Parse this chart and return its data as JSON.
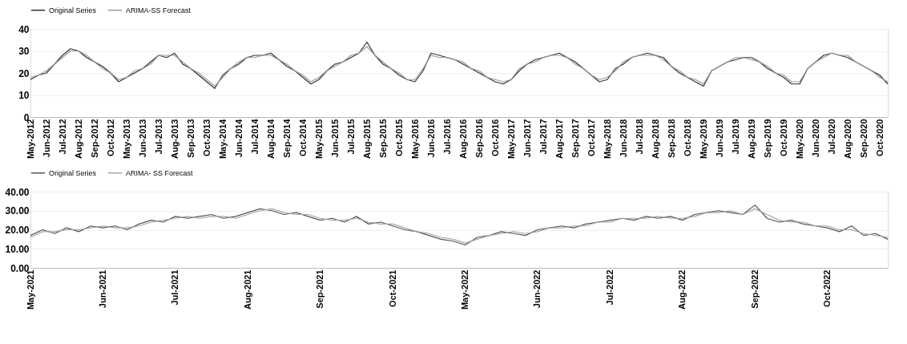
{
  "chart_data": [
    {
      "type": "line",
      "legend": "top",
      "grid": "y",
      "line_style": "solid",
      "categories": [
        "May-2012",
        null,
        "Jun-2012",
        null,
        "Jul-2012",
        null,
        "Aug-2012",
        null,
        "Sep-2012",
        null,
        "Oct-2012",
        null,
        "May-2013",
        null,
        "Jun-2013",
        null,
        "Jul-2013",
        null,
        "Aug-2013",
        null,
        "Sep-2013",
        null,
        "Oct-2013",
        null,
        "May-2014",
        null,
        "Jun-2014",
        null,
        "Jul-2014",
        null,
        "Aug-2014",
        null,
        "Sep-2014",
        null,
        "Oct-2014",
        null,
        "May-2015",
        null,
        "Jun-2015",
        null,
        "Jul-2015",
        null,
        "Aug-2015",
        null,
        "Sep-2015",
        null,
        "Oct-2015",
        null,
        "May-2016",
        null,
        "Jun-2016",
        null,
        "Jul-2016",
        null,
        "Aug-2016",
        null,
        "Sep-2016",
        null,
        "Oct-2016",
        null,
        "May-2017",
        null,
        "Jun-2017",
        null,
        "Jul-2017",
        null,
        "Aug-2017",
        null,
        "Sep-2017",
        null,
        "Oct-2017",
        null,
        "May-2018",
        null,
        "Jun-2018",
        null,
        "Jul-2018",
        null,
        "Aug-2018",
        null,
        "Sep-2018",
        null,
        "Oct-2018",
        null,
        "May-2019",
        null,
        "Jun-2019",
        null,
        "Jul-2019",
        null,
        "Aug-2019",
        null,
        "Sep-2019",
        null,
        "Oct-2019",
        null,
        "May-2020",
        null,
        "Jun-2020",
        null,
        "Jul-2020",
        null,
        "Aug-2020",
        null,
        "Sep-2020",
        null,
        "Oct-2020",
        null
      ],
      "ylim": [
        0,
        40
      ],
      "yticks": [
        0,
        10,
        20,
        30,
        40
      ],
      "series": [
        {
          "name": "Original Series",
          "color": "#333333",
          "values": [
            17,
            19,
            20,
            24,
            28,
            31,
            30,
            27,
            25,
            23,
            20,
            16,
            18,
            20,
            22,
            25,
            28,
            27,
            29,
            24,
            22,
            19,
            16,
            13,
            19,
            22,
            24,
            27,
            28,
            28,
            29,
            26,
            23,
            21,
            18,
            15,
            17,
            21,
            24,
            25,
            27,
            29,
            34,
            28,
            24,
            22,
            19,
            17,
            16,
            21,
            29,
            28,
            27,
            26,
            24,
            22,
            20,
            18,
            16,
            15,
            17,
            21,
            24,
            26,
            27,
            28,
            29,
            27,
            25,
            22,
            19,
            16,
            17,
            22,
            24,
            27,
            28,
            29,
            28,
            27,
            23,
            20,
            18,
            16,
            14,
            21,
            23,
            25,
            26,
            27,
            27,
            25,
            22,
            20,
            18,
            15,
            15,
            22,
            25,
            28,
            29,
            28,
            27,
            25,
            23,
            21,
            19,
            15
          ]
        },
        {
          "name": "ARIMA-SS Forecast",
          "color": "#9a9a9a",
          "values": [
            18,
            19,
            21,
            24,
            27,
            30,
            30,
            28,
            25,
            22,
            20,
            17,
            18,
            21,
            22,
            24,
            28,
            28,
            28,
            25,
            22,
            20,
            17,
            14,
            18,
            22,
            25,
            27,
            27,
            28,
            28,
            26,
            24,
            21,
            19,
            16,
            18,
            21,
            23,
            25,
            28,
            29,
            32,
            28,
            25,
            22,
            20,
            17,
            17,
            22,
            28,
            27,
            27,
            26,
            25,
            22,
            21,
            18,
            17,
            16,
            17,
            22,
            24,
            25,
            27,
            28,
            28,
            27,
            24,
            22,
            19,
            17,
            18,
            21,
            25,
            27,
            28,
            28,
            28,
            26,
            23,
            21,
            18,
            17,
            15,
            21,
            23,
            25,
            27,
            27,
            26,
            25,
            23,
            20,
            19,
            16,
            16,
            22,
            25,
            27,
            29,
            28,
            28,
            25,
            23,
            21,
            18,
            16
          ]
        }
      ]
    },
    {
      "type": "line",
      "legend": "top",
      "grid": "y",
      "line_style": "solid",
      "categories": [
        "May-2021",
        null,
        null,
        null,
        null,
        null,
        "Jun-2021",
        null,
        null,
        null,
        null,
        null,
        "Jul-2021",
        null,
        null,
        null,
        null,
        null,
        "Aug-2021",
        null,
        null,
        null,
        null,
        null,
        "Sep-2021",
        null,
        null,
        null,
        null,
        null,
        "Oct-2021",
        null,
        null,
        null,
        null,
        null,
        "May-2022",
        null,
        null,
        null,
        null,
        null,
        "Jun-2022",
        null,
        null,
        null,
        null,
        null,
        "Jul-2022",
        null,
        null,
        null,
        null,
        null,
        "Aug-2022",
        null,
        null,
        null,
        null,
        null,
        "Sep-2022",
        null,
        null,
        null,
        null,
        null,
        "Oct-2022",
        null,
        null,
        null,
        null,
        null
      ],
      "ylim": [
        0,
        40
      ],
      "yticks": [
        {
          "value": 0,
          "label": "0.00"
        },
        {
          "value": 10,
          "label": "10.00"
        },
        {
          "value": 20,
          "label": "20.00"
        },
        {
          "value": 30,
          "label": "30.00"
        },
        {
          "value": 40,
          "label": "40.00"
        }
      ],
      "series": [
        {
          "name": "Original Series",
          "color": "#555555",
          "values": [
            17,
            20,
            18,
            21,
            19,
            22,
            21,
            22,
            20,
            23,
            25,
            24,
            27,
            26,
            27,
            28,
            26,
            27,
            29,
            31,
            30,
            28,
            29,
            27,
            25,
            26,
            24,
            27,
            23,
            24,
            22,
            20,
            19,
            17,
            15,
            14,
            12,
            16,
            17,
            19,
            18,
            17,
            20,
            21,
            22,
            21,
            23,
            24,
            25,
            26,
            25,
            27,
            26,
            27,
            25,
            28,
            29,
            30,
            29,
            28,
            33,
            26,
            24,
            25,
            23,
            22,
            21,
            19,
            22,
            17,
            18,
            15
          ]
        },
        {
          "name": "ARIMA- SS Forecast",
          "color": "#a6a6a6",
          "values": [
            16,
            19,
            19,
            20,
            20,
            21,
            22,
            21,
            21,
            22,
            24,
            25,
            26,
            27,
            26,
            27,
            27,
            26,
            28,
            30,
            31,
            29,
            28,
            28,
            26,
            25,
            25,
            26,
            24,
            23,
            23,
            21,
            19,
            18,
            16,
            15,
            13,
            15,
            17,
            18,
            19,
            18,
            19,
            21,
            21,
            22,
            22,
            24,
            24,
            26,
            26,
            26,
            27,
            26,
            26,
            27,
            29,
            29,
            30,
            28,
            31,
            28,
            25,
            24,
            24,
            22,
            22,
            20,
            20,
            18,
            17,
            16
          ]
        }
      ]
    }
  ]
}
